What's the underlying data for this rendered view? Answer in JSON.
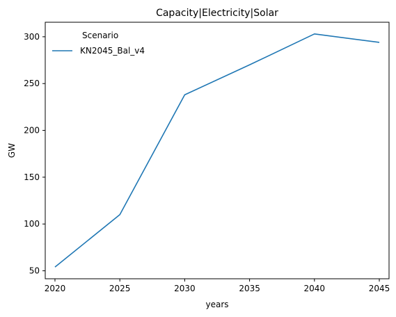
{
  "chart_data": {
    "type": "line",
    "title": "Capacity|Electricity|Solar",
    "xlabel": "years",
    "ylabel": "GW",
    "x": [
      2020,
      2025,
      2030,
      2035,
      2040,
      2045
    ],
    "series": [
      {
        "name": "KN2045_Bal_v4",
        "color": "#1f77b4",
        "values": [
          54,
          110,
          238,
          270,
          303,
          294
        ]
      }
    ],
    "xticks": [
      "2020",
      "2025",
      "2030",
      "2035",
      "2040",
      "2045"
    ],
    "yticks": [
      "50",
      "100",
      "150",
      "200",
      "250",
      "300"
    ],
    "xlim": [
      2019.25,
      2045.75
    ],
    "ylim": [
      41.5,
      315.5
    ],
    "grid": false,
    "legend": {
      "title": "Scenario",
      "placement": "upper-left",
      "frame": false
    }
  }
}
